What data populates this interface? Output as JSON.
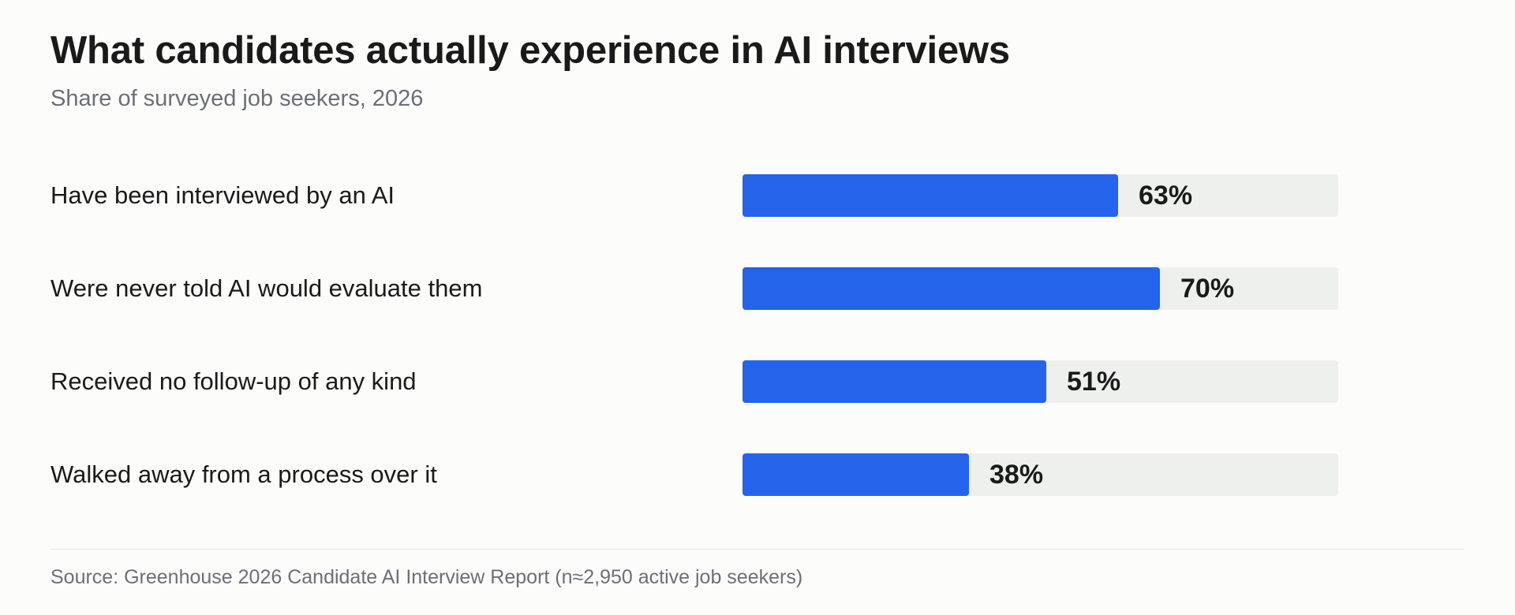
{
  "chart_data": {
    "type": "bar",
    "orientation": "horizontal",
    "title": "What candidates actually experience in AI interviews",
    "subtitle": "Share of surveyed job seekers, 2026",
    "xlim": [
      0,
      100
    ],
    "grid": false,
    "categories": [
      "Have been interviewed by an AI",
      "Were never told AI would evaluate them",
      "Received no follow-up of any kind",
      "Walked away from a process over it"
    ],
    "values": [
      63,
      70,
      51,
      38
    ],
    "value_labels": [
      "63%",
      "70%",
      "51%",
      "38%"
    ],
    "source": "Source: Greenhouse 2026 Candidate AI Interview Report (n≈2,950 active job seekers)"
  },
  "colors": {
    "bar": "#2563eb",
    "track": "#eef0ee",
    "background": "#fcfcfb"
  }
}
